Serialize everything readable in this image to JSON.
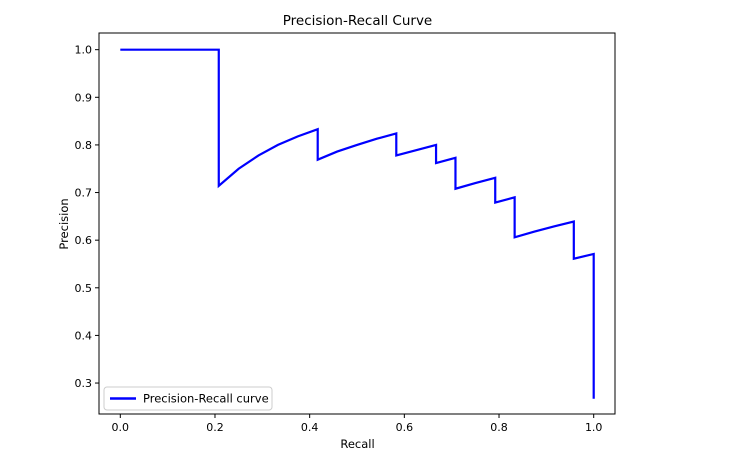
{
  "chart_data": {
    "type": "line",
    "title": "Precision-Recall Curve",
    "xlabel": "Recall",
    "ylabel": "Precision",
    "xlim": [
      -0.045,
      1.045
    ],
    "ylim": [
      0.235,
      1.035
    ],
    "xticks": [
      0.0,
      0.2,
      0.4,
      0.6,
      0.8,
      1.0
    ],
    "xtick_labels": [
      "0.0",
      "0.2",
      "0.4",
      "0.6",
      "0.8",
      "1.0"
    ],
    "yticks": [
      0.3,
      0.4,
      0.5,
      0.6,
      0.7,
      0.8,
      0.9,
      1.0
    ],
    "ytick_labels": [
      "0.3",
      "0.4",
      "0.5",
      "0.6",
      "0.7",
      "0.8",
      "0.9",
      "1.0"
    ],
    "grid": false,
    "legend": {
      "position": "lower-left"
    },
    "series": [
      {
        "name": "Precision-Recall curve",
        "color": "#0000ff",
        "x": [
          0.0,
          0.208,
          0.208,
          0.25,
          0.292,
          0.333,
          0.375,
          0.417,
          0.417,
          0.458,
          0.5,
          0.542,
          0.583,
          0.583,
          0.625,
          0.667,
          0.667,
          0.708,
          0.708,
          0.75,
          0.792,
          0.792,
          0.833,
          0.833,
          0.875,
          0.917,
          0.958,
          0.958,
          1.0,
          1.0
        ],
        "y": [
          1.0,
          1.0,
          0.714,
          0.75,
          0.778,
          0.8,
          0.818,
          0.833,
          0.769,
          0.786,
          0.8,
          0.813,
          0.824,
          0.778,
          0.789,
          0.8,
          0.762,
          0.773,
          0.708,
          0.72,
          0.731,
          0.679,
          0.69,
          0.606,
          0.618,
          0.629,
          0.639,
          0.561,
          0.571,
          0.267
        ]
      }
    ]
  }
}
